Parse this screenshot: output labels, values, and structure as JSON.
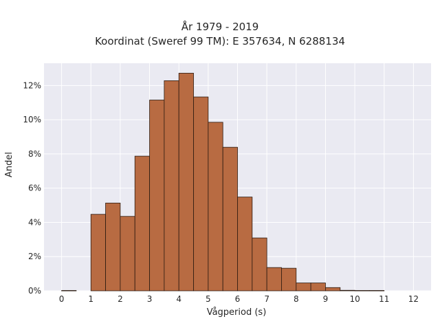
{
  "chart_data": {
    "type": "bar",
    "title": [
      "År 1979 - 2019",
      "Koordinat (Sweref 99 TM): E 357634, N 6288134"
    ],
    "xlabel": "Vågperiod (s)",
    "ylabel": "Andel",
    "xlim": [
      -0.6,
      12.6
    ],
    "ylim": [
      0,
      13.3
    ],
    "xticks": [
      0,
      1,
      2,
      3,
      4,
      5,
      6,
      7,
      8,
      9,
      10,
      11,
      12
    ],
    "xtick_labels": [
      "0",
      "1",
      "2",
      "3",
      "4",
      "5",
      "6",
      "7",
      "8",
      "9",
      "10",
      "11",
      "12"
    ],
    "yticks": [
      0,
      2,
      4,
      6,
      8,
      10,
      12
    ],
    "ytick_labels": [
      "0%",
      "2%",
      "4%",
      "6%",
      "8%",
      "10%",
      "12%"
    ],
    "bin_width": 0.5,
    "bins": [
      {
        "x0": 0.0,
        "value": 0.02
      },
      {
        "x0": 1.0,
        "value": 4.47
      },
      {
        "x0": 1.5,
        "value": 5.13
      },
      {
        "x0": 2.0,
        "value": 4.35
      },
      {
        "x0": 2.5,
        "value": 7.87
      },
      {
        "x0": 3.0,
        "value": 11.15
      },
      {
        "x0": 3.5,
        "value": 12.28
      },
      {
        "x0": 4.0,
        "value": 12.72
      },
      {
        "x0": 4.5,
        "value": 11.33
      },
      {
        "x0": 5.0,
        "value": 9.85
      },
      {
        "x0": 5.5,
        "value": 8.39
      },
      {
        "x0": 6.0,
        "value": 5.48
      },
      {
        "x0": 6.5,
        "value": 3.09
      },
      {
        "x0": 7.0,
        "value": 1.36
      },
      {
        "x0": 7.5,
        "value": 1.32
      },
      {
        "x0": 8.0,
        "value": 0.46
      },
      {
        "x0": 8.5,
        "value": 0.46
      },
      {
        "x0": 9.0,
        "value": 0.19
      },
      {
        "x0": 9.5,
        "value": 0.03
      },
      {
        "x0": 10.0,
        "value": 0.02
      },
      {
        "x0": 10.5,
        "value": 0.02
      }
    ],
    "grid": true,
    "colors": {
      "bar_fill": "#b86b42",
      "bar_edge": "#2b1a10",
      "plot_background": "#eaeaf2",
      "grid": "#ffffff"
    }
  }
}
